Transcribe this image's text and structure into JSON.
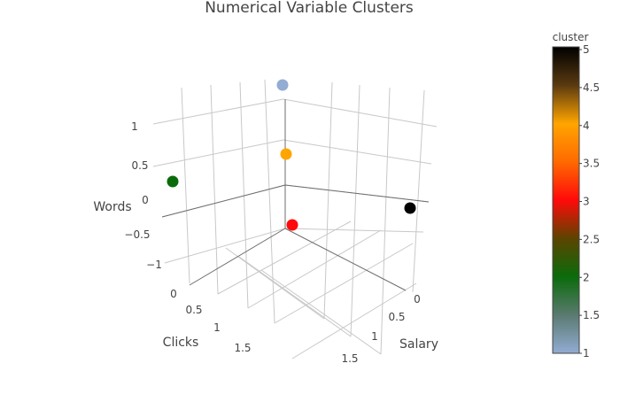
{
  "chart_data": {
    "type": "scatter3d",
    "title": "Numerical Variable Clusters",
    "axes": {
      "x": {
        "title": "Clicks",
        "ticks": [
          "0",
          "0.5",
          "1",
          "1.5"
        ]
      },
      "y": {
        "title": "Salary",
        "ticks": [
          "0",
          "0.5",
          "1",
          "1.5"
        ]
      },
      "z": {
        "title": "Words",
        "ticks": [
          "1",
          "0.5",
          "0",
          "−0.5",
          "−1"
        ]
      }
    },
    "points": [
      {
        "cluster": 1,
        "color": "#92acd3"
      },
      {
        "cluster": 2,
        "color": "#0b6b0b"
      },
      {
        "cluster": 3,
        "color": "#ff0a0a"
      },
      {
        "cluster": 4,
        "color": "#ffa500"
      },
      {
        "cluster": 5,
        "color": "#000000"
      }
    ],
    "colorbar": {
      "title": "cluster",
      "ticks": [
        "5",
        "4.5",
        "4",
        "3.5",
        "3",
        "2.5",
        "2",
        "1.5",
        "1"
      ],
      "range": [
        1,
        5
      ],
      "stops": [
        "#000000",
        "#5a3a10",
        "#ffa500",
        "#ff6a00",
        "#ff0a0a",
        "#5c4400",
        "#0b6b0b",
        "#5a7a70",
        "#92acd3"
      ]
    }
  }
}
